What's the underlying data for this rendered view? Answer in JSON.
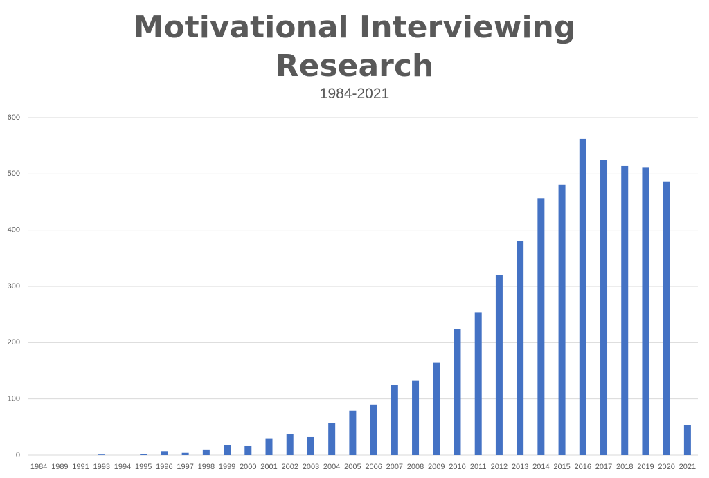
{
  "chart_data": {
    "type": "bar",
    "title": "Motivational Interviewing Research",
    "subtitle": "1984-2021",
    "categories": [
      "1984",
      "1989",
      "1991",
      "1993",
      "1994",
      "1995",
      "1996",
      "1997",
      "1998",
      "1999",
      "2000",
      "2001",
      "2002",
      "2003",
      "2004",
      "2005",
      "2006",
      "2007",
      "2008",
      "2009",
      "2010",
      "2011",
      "2012",
      "2013",
      "2014",
      "2015",
      "2016",
      "2017",
      "2018",
      "2019",
      "2020",
      "2021"
    ],
    "values": [
      0,
      0,
      0,
      1,
      0,
      2,
      7,
      4,
      10,
      18,
      16,
      30,
      37,
      32,
      57,
      79,
      90,
      125,
      132,
      164,
      225,
      254,
      320,
      381,
      457,
      481,
      562,
      524,
      514,
      511,
      486,
      53
    ],
    "color": "#4472c4",
    "ylim": [
      0,
      600
    ],
    "yticks": [
      0,
      100,
      200,
      300,
      400,
      500,
      600
    ],
    "grid": true
  }
}
